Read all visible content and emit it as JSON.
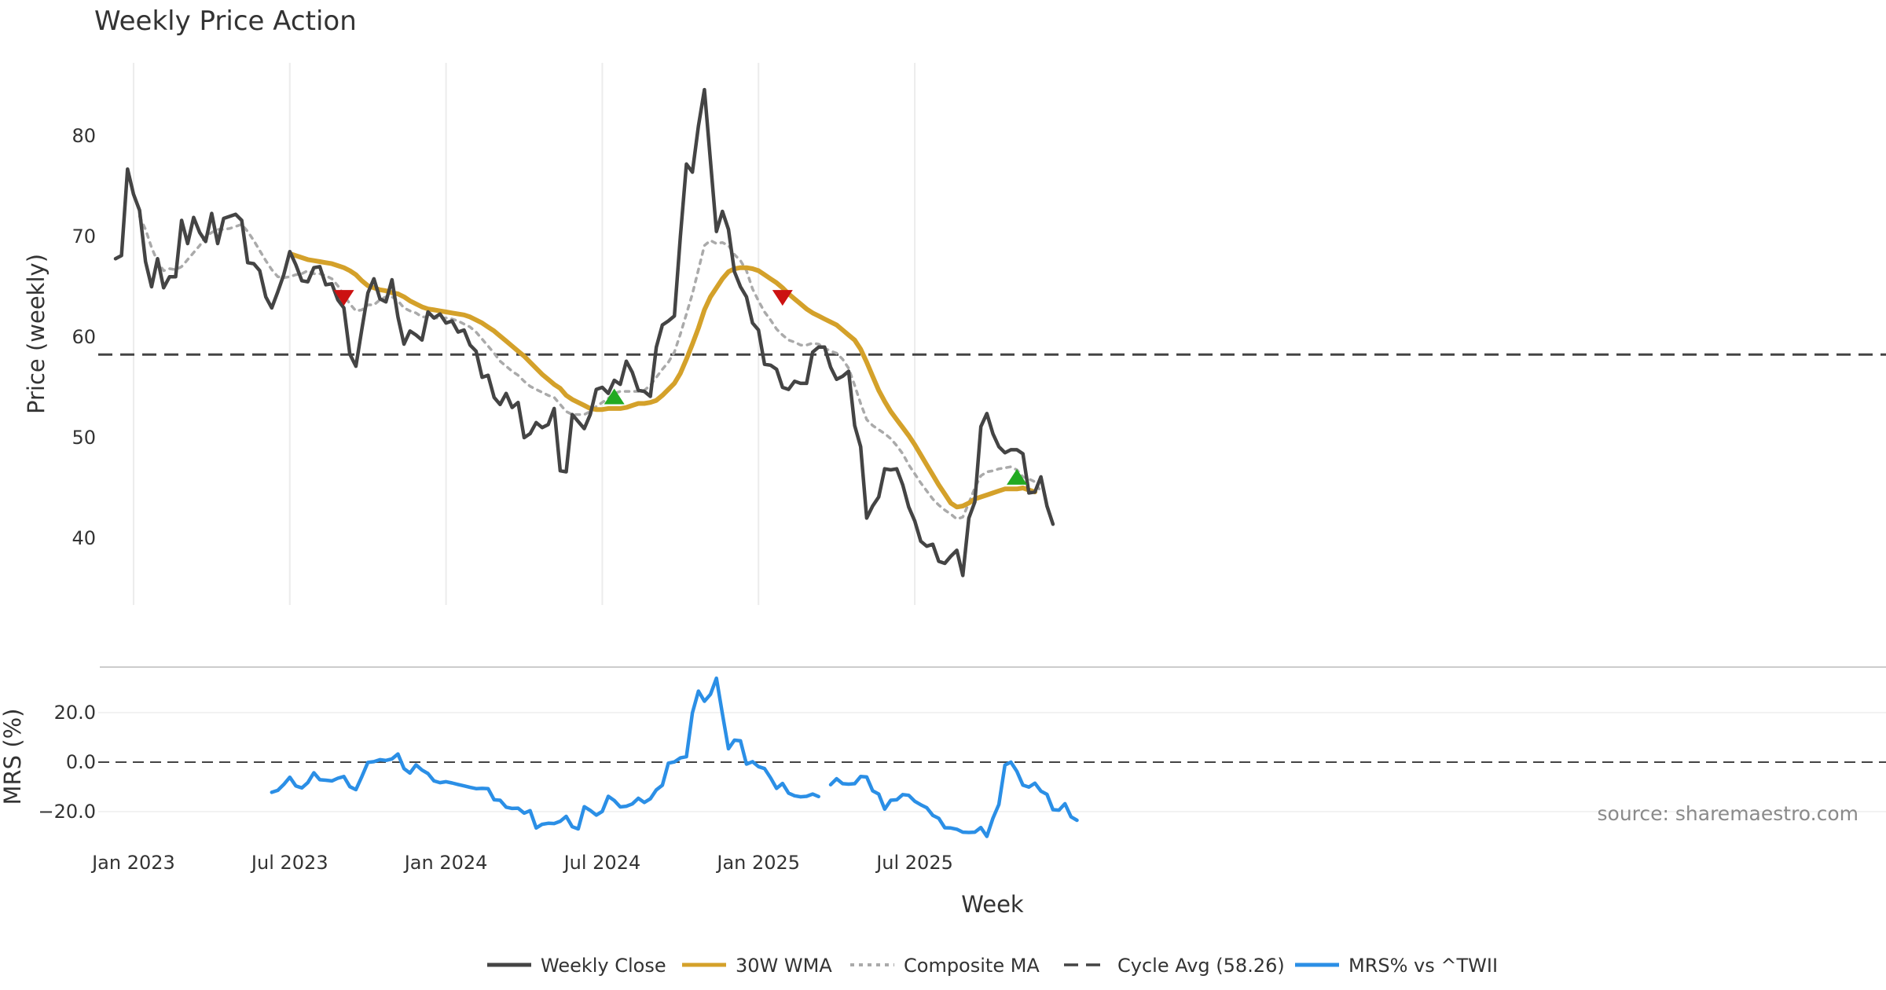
{
  "chart_data": [
    {
      "type": "line",
      "title": "Weekly Price Action",
      "ylabel": "Price (weekly)",
      "ylim": [
        33,
        87
      ],
      "yticks": [
        40,
        50,
        60,
        70,
        80
      ],
      "x_start": "2022-12-12",
      "x_step_days": 7,
      "cycle_avg": 58.26,
      "series": [
        {
          "name": "Weekly Close",
          "color": "#444444",
          "values": [
            67.8,
            68.1,
            76.7,
            74.2,
            72.6,
            67.5,
            65.0,
            67.8,
            64.9,
            66.0,
            66.0,
            71.6,
            69.3,
            71.9,
            70.4,
            69.5,
            72.3,
            69.3,
            71.8,
            72.0,
            72.2,
            71.6,
            67.4,
            67.3,
            66.6,
            64.0,
            62.9,
            64.5,
            66.2,
            68.5,
            67.2,
            65.6,
            65.5,
            66.9,
            67.0,
            65.2,
            65.3,
            63.7,
            62.9,
            58.3,
            57.1,
            60.8,
            64.4,
            65.8,
            63.8,
            63.5,
            65.7,
            62.0,
            59.3,
            60.6,
            60.2,
            59.7,
            62.5,
            61.9,
            62.3,
            61.4,
            61.6,
            60.5,
            60.7,
            59.2,
            58.6,
            56.0,
            56.2,
            54.0,
            53.3,
            54.4,
            53.0,
            53.5,
            50.0,
            50.4,
            51.5,
            51.0,
            51.3,
            52.9,
            46.7,
            46.6,
            52.3,
            51.6,
            50.9,
            52.3,
            54.8,
            55.0,
            54.4,
            55.7,
            55.3,
            57.6,
            56.5,
            54.7,
            54.6,
            54.1,
            59.0,
            61.2,
            61.6,
            62.1,
            70.0,
            77.2,
            76.4,
            81.0,
            84.6,
            77.5,
            70.5,
            72.5,
            70.7,
            66.5,
            65.0,
            64.0,
            61.4,
            60.7,
            57.3,
            57.2,
            56.8,
            55.0,
            54.8,
            55.6,
            55.4,
            55.4,
            58.5,
            59.0,
            59.0,
            57.0,
            55.8,
            56.1,
            56.6,
            51.2,
            49.1,
            42.0,
            43.2,
            44.1,
            46.9,
            46.8,
            46.9,
            45.3,
            43.1,
            41.7,
            39.7,
            39.2,
            39.4,
            37.7,
            37.5,
            38.2,
            38.8,
            36.3,
            42.0,
            43.6,
            51.1,
            52.4,
            50.4,
            49.1,
            48.5,
            48.8,
            48.8,
            48.4,
            44.5,
            44.6,
            46.1,
            43.2,
            41.4
          ]
        },
        {
          "name": "30W WMA",
          "color": "#D4A12A",
          "start_week": 29,
          "values": [
            68.3,
            68.1,
            67.9,
            67.7,
            67.6,
            67.5,
            67.4,
            67.3,
            67.1,
            66.9,
            66.6,
            66.2,
            65.6,
            65.1,
            64.9,
            64.7,
            64.6,
            64.4,
            64.3,
            64.0,
            63.6,
            63.3,
            63.0,
            62.8,
            62.7,
            62.6,
            62.5,
            62.4,
            62.3,
            62.2,
            62.0,
            61.7,
            61.4,
            61.0,
            60.6,
            60.1,
            59.6,
            59.1,
            58.6,
            58.1,
            57.5,
            56.9,
            56.3,
            55.8,
            55.3,
            54.9,
            54.2,
            53.8,
            53.5,
            53.2,
            52.9,
            52.8,
            52.8,
            52.9,
            52.9,
            52.9,
            53.0,
            53.2,
            53.4,
            53.4,
            53.5,
            53.7,
            54.2,
            54.8,
            55.4,
            56.4,
            57.8,
            59.3,
            60.9,
            62.7,
            64.0,
            64.9,
            65.8,
            66.5,
            66.8,
            66.9,
            66.9,
            66.8,
            66.6,
            66.2,
            65.8,
            65.4,
            64.9,
            64.3,
            63.8,
            63.3,
            62.8,
            62.4,
            62.1,
            61.8,
            61.5,
            61.2,
            60.7,
            60.2,
            59.7,
            58.8,
            57.5,
            56.1,
            54.7,
            53.6,
            52.6,
            51.8,
            51.0,
            50.2,
            49.3,
            48.3,
            47.3,
            46.3,
            45.3,
            44.4,
            43.5,
            43.1,
            43.2,
            43.5,
            43.9,
            44.1,
            44.3,
            44.5,
            44.7,
            44.9,
            44.9,
            44.9,
            45.0,
            44.8,
            44.6
          ]
        },
        {
          "name": "Composite MA",
          "color": "#AAAAAA",
          "values": [
            null,
            null,
            null,
            null,
            72.0,
            70.7,
            68.9,
            67.5,
            66.6,
            66.8,
            66.7,
            67.0,
            67.7,
            68.4,
            69.1,
            70.0,
            70.4,
            70.7,
            70.7,
            70.8,
            71.0,
            71.2,
            70.5,
            69.6,
            68.6,
            67.6,
            66.7,
            66.0,
            65.9,
            66.0,
            66.2,
            66.3,
            66.6,
            66.3,
            66.3,
            66.1,
            65.8,
            65.1,
            64.2,
            63.3,
            62.6,
            62.7,
            63.2,
            63.2,
            63.7,
            64.0,
            64.0,
            63.6,
            62.9,
            62.6,
            62.4,
            62.0,
            62.0,
            61.9,
            61.9,
            61.9,
            61.8,
            61.6,
            61.3,
            61.0,
            60.5,
            59.8,
            59.1,
            58.4,
            57.6,
            57.1,
            56.6,
            56.2,
            55.6,
            55.1,
            54.8,
            54.5,
            54.2,
            54.0,
            53.3,
            52.6,
            52.3,
            52.3,
            52.3,
            52.6,
            53.1,
            53.5,
            53.9,
            54.4,
            54.6,
            54.6,
            54.6,
            54.6,
            54.7,
            55.2,
            56.0,
            56.8,
            57.5,
            58.5,
            60.3,
            62.3,
            64.3,
            66.7,
            69.1,
            69.6,
            69.3,
            69.4,
            69.1,
            68.2,
            67.6,
            66.6,
            64.8,
            63.6,
            62.5,
            61.7,
            60.8,
            60.2,
            59.7,
            59.5,
            59.2,
            59.2,
            59.4,
            59.3,
            58.9,
            58.6,
            58.4,
            57.8,
            56.9,
            55.2,
            53.4,
            51.8,
            51.2,
            50.8,
            50.4,
            49.9,
            49.2,
            48.4,
            47.3,
            46.4,
            45.5,
            44.7,
            43.9,
            43.3,
            42.8,
            42.4,
            41.9,
            42.1,
            43.5,
            45.0,
            46.2,
            46.6,
            46.7,
            46.9,
            47.0,
            47.1,
            46.8,
            46.1,
            45.9,
            45.6,
            44.6
          ]
        }
      ],
      "markers": [
        {
          "kind": "sell",
          "label": "▼",
          "color": "#CC1111",
          "week": 38,
          "value": 63.9
        },
        {
          "kind": "buy",
          "label": "▲",
          "color": "#22AA22",
          "week": 83,
          "value": 54.1
        },
        {
          "kind": "sell",
          "label": "▼",
          "color": "#CC1111",
          "week": 111,
          "value": 63.9
        },
        {
          "kind": "buy",
          "label": "▲",
          "color": "#22AA22",
          "week": 150,
          "value": 46.1
        }
      ]
    },
    {
      "type": "line",
      "ylabel": "MRS (%)",
      "xlabel": "Week",
      "ylim": [
        -30,
        36
      ],
      "yticks": [
        20.0,
        0.0,
        -20.0
      ],
      "ytick_labels": [
        "20.0",
        "0.0",
        "−20.0"
      ],
      "zero_line": 0.0,
      "xtick_labels": [
        "Jan 2023",
        "Jul 2023",
        "Jan 2024",
        "Jul 2024",
        "Jan 2025",
        "Jul 2025"
      ],
      "xtick_weeks": [
        3,
        29,
        55,
        81,
        107,
        133
      ],
      "series": [
        {
          "name": "MRS% vs ^TWII",
          "color": "#2B8FE6",
          "start_week": 26,
          "values": [
            -12.2,
            -11.4,
            -9.0,
            -6.1,
            -9.6,
            -10.4,
            -8.3,
            -4.3,
            -7.1,
            -7.3,
            -7.6,
            -6.5,
            -5.8,
            -9.9,
            -11.1,
            -5.8,
            -0.1,
            0.2,
            1.0,
            0.7,
            1.3,
            3.3,
            -2.6,
            -4.4,
            -1.1,
            -3.2,
            -4.6,
            -7.6,
            -8.3,
            -7.9,
            -8.4,
            -9.0,
            -9.6,
            -10.2,
            -10.7,
            -10.6,
            -10.7,
            -15.2,
            -15.4,
            -18.2,
            -18.7,
            -18.6,
            -20.6,
            -19.6,
            -26.6,
            -25.1,
            -24.7,
            -24.8,
            -23.9,
            -21.9,
            -26.1,
            -27.0,
            -18.0,
            -19.5,
            -21.4,
            -19.9,
            -13.8,
            -15.5,
            -18.1,
            -17.8,
            -16.9,
            -14.6,
            -16.3,
            -14.8,
            -11.2,
            -9.3,
            -0.4,
            0.1,
            1.7,
            2.2,
            19.9,
            28.7,
            24.6,
            27.4,
            33.9,
            19.5,
            5.4,
            8.9,
            8.6,
            -0.8,
            0.2,
            -1.8,
            -2.6,
            -6.3,
            -10.6,
            -8.6,
            -12.5,
            -13.6,
            -14.0,
            -13.8,
            -12.9,
            -13.9,
            null,
            -9.1,
            -6.7,
            -8.7,
            -8.9,
            -8.7,
            -5.8,
            -6.0,
            -11.6,
            -12.9,
            -19.0,
            -15.4,
            -15.2,
            -13.1,
            -13.4,
            -15.8,
            -17.2,
            -18.4,
            -21.5,
            -22.7,
            -26.5,
            -26.6,
            -27.1,
            -28.3,
            -28.4,
            -28.3,
            -26.4,
            -30.0,
            -22.7,
            -17.1,
            -1.2,
            0.0,
            -3.7,
            -9.3,
            -10.1,
            -8.5,
            -11.7,
            -13.0,
            -19.2,
            -19.4,
            -16.8,
            -22.1,
            -23.5
          ]
        }
      ]
    }
  ],
  "legend": [
    {
      "label": "Weekly Close",
      "style": "solid",
      "color": "#444444"
    },
    {
      "label": "30W WMA",
      "style": "solid",
      "color": "#D4A12A"
    },
    {
      "label": "Composite MA",
      "style": "dotted",
      "color": "#AAAAAA"
    },
    {
      "label": "Cycle Avg (58.26)",
      "style": "dashed",
      "color": "#444444"
    },
    {
      "label": "MRS% vs ^TWII",
      "style": "solid",
      "color": "#2B8FE6"
    }
  ],
  "source": "source: sharemaestro.com"
}
